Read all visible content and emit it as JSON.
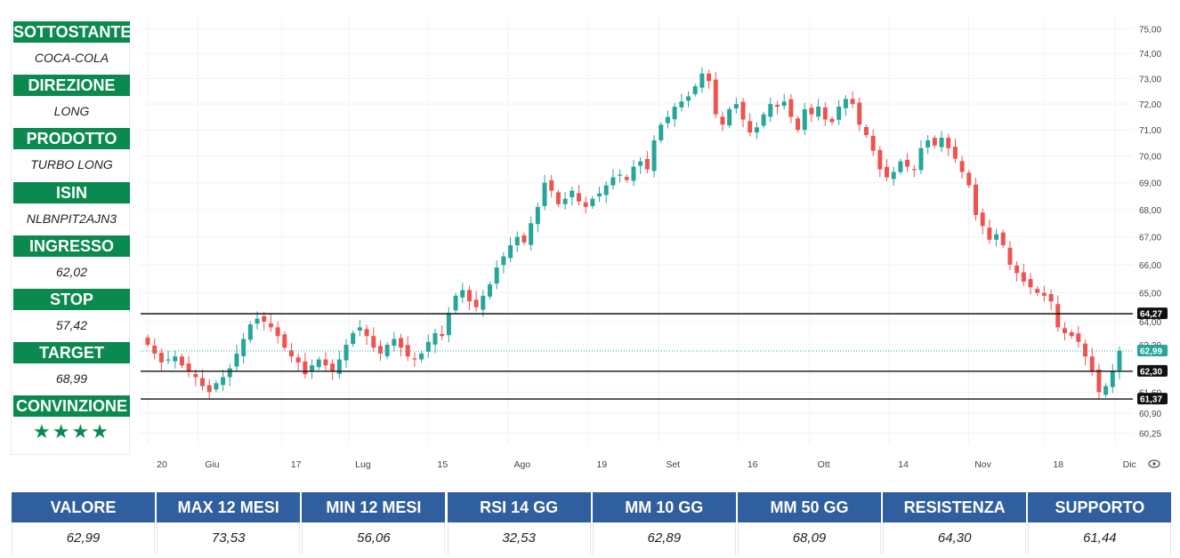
{
  "panel": {
    "header_color": "#0b8a4f",
    "items": [
      {
        "label": "SOTTOSTANTE",
        "value": "COCA-COLA"
      },
      {
        "label": "DIREZIONE",
        "value": "LONG"
      },
      {
        "label": "PRODOTTO",
        "value": "TURBO LONG"
      },
      {
        "label": "ISIN",
        "value": "NLBNPIT2AJN3"
      },
      {
        "label": "INGRESSO",
        "value": "62,02"
      },
      {
        "label": "STOP",
        "value": "57,42"
      },
      {
        "label": "TARGET",
        "value": "68,99"
      },
      {
        "label": "CONVINZIONE",
        "value": "★★★★"
      }
    ]
  },
  "table": {
    "header_color": "#2f5f9e",
    "columns": [
      {
        "label": "VALORE",
        "value": "62,99"
      },
      {
        "label": "MAX 12 MESI",
        "value": "73,53"
      },
      {
        "label": "MIN 12 MESI",
        "value": "56,06"
      },
      {
        "label": "RSI 14 GG",
        "value": "32,53"
      },
      {
        "label": "MM 10 GG",
        "value": "62,89"
      },
      {
        "label": "MM 50 GG",
        "value": "68,09"
      },
      {
        "label": "RESISTENZA",
        "value": "64,30"
      },
      {
        "label": "SUPPORTO",
        "value": "61,44"
      }
    ]
  },
  "chart_data": {
    "type": "candlestick",
    "title": "",
    "y_scale": "log",
    "ylim": [
      60.0,
      75.3
    ],
    "y_ticks": [
      "75,00",
      "74,00",
      "73,00",
      "72,00",
      "71,00",
      "70,00",
      "69,00",
      "68,00",
      "67,00",
      "66,00",
      "65,00",
      "64,00",
      "63,20",
      "61,60",
      "60,90",
      "60,25"
    ],
    "y_tick_values": [
      75,
      74,
      73,
      72,
      71,
      70,
      69,
      68,
      67,
      66,
      65,
      64,
      63.2,
      61.6,
      60.9,
      60.25
    ],
    "x_labels": [
      "20",
      "Giu",
      "17",
      "Lug",
      "15",
      "Ago",
      "19",
      "Set",
      "16",
      "Ott",
      "14",
      "Nov",
      "18",
      "Dic"
    ],
    "x_label_positions": [
      0,
      12,
      32,
      48,
      67,
      86,
      105,
      122,
      141,
      158,
      177,
      196,
      214,
      231
    ],
    "up_color": "#26a69a",
    "down_color": "#ef5350",
    "levels": [
      {
        "label": "64,27",
        "value": 64.27,
        "color": "#111111"
      },
      {
        "label": "62,30",
        "value": 62.3,
        "color": "#111111"
      },
      {
        "label": "61,37",
        "value": 61.37,
        "color": "#111111"
      }
    ],
    "last_price": {
      "label": "62,99",
      "value": 62.99,
      "color": "#26a69a"
    },
    "closes": [
      63.2,
      62.9,
      62.6,
      62.7,
      62.8,
      62.5,
      62.3,
      62.1,
      61.8,
      61.6,
      61.9,
      62.1,
      62.4,
      62.9,
      63.4,
      63.9,
      64.1,
      64.0,
      63.8,
      63.5,
      63.1,
      62.8,
      62.6,
      62.2,
      62.5,
      62.7,
      62.5,
      62.3,
      62.7,
      63.2,
      63.6,
      63.8,
      63.5,
      63.1,
      62.9,
      63.2,
      63.4,
      63.1,
      62.8,
      62.7,
      62.9,
      63.3,
      63.6,
      63.5,
      64.3,
      64.9,
      65.1,
      64.7,
      64.5,
      64.9,
      65.3,
      65.9,
      66.3,
      66.7,
      67.0,
      66.8,
      67.5,
      68.1,
      69.0,
      68.7,
      68.2,
      68.4,
      68.7,
      68.3,
      68.1,
      68.4,
      68.6,
      68.9,
      69.2,
      69.3,
      69.1,
      69.6,
      69.8,
      69.5,
      70.6,
      71.2,
      71.5,
      71.9,
      72.1,
      72.3,
      72.7,
      73.2,
      72.9,
      71.6,
      71.2,
      71.8,
      72.0,
      71.4,
      70.9,
      71.1,
      71.6,
      72.0,
      71.9,
      72.1,
      71.5,
      71.0,
      71.8,
      71.6,
      71.9,
      71.4,
      71.3,
      71.9,
      72.2,
      72.0,
      71.2,
      70.8,
      70.2,
      69.5,
      69.2,
      69.4,
      69.8,
      69.6,
      69.5,
      70.3,
      70.6,
      70.4,
      70.7,
      70.3,
      69.9,
      69.4,
      68.9,
      67.8,
      67.4,
      66.9,
      67.1,
      66.7,
      66.0,
      65.7,
      65.4,
      65.2,
      65.0,
      64.9,
      64.7,
      63.8,
      63.6,
      63.5,
      63.3,
      62.8,
      62.3,
      61.6,
      61.8,
      62.3,
      62.99
    ]
  }
}
